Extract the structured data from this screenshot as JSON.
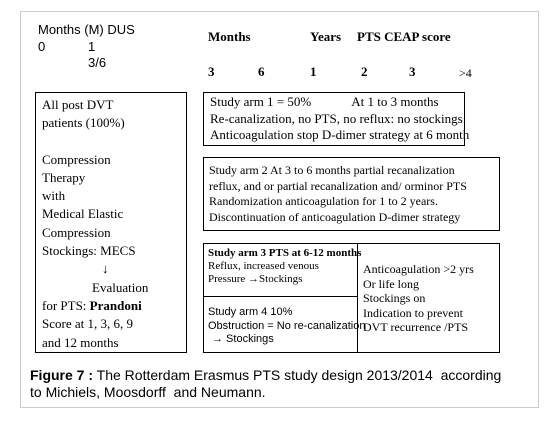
{
  "header": {
    "dus_label": "Months (M) DUS",
    "dus_values": [
      "0",
      "1",
      "3/6"
    ],
    "columns": [
      "Months",
      "Years",
      "PTS CEAP score"
    ],
    "scale": [
      "3",
      "6",
      "1",
      "2",
      "3",
      ">4"
    ]
  },
  "left_box": {
    "lines": [
      "All post DVT",
      "patients (100%)",
      "Compression",
      "Therapy",
      "with",
      "Medical Elastic",
      "Compression",
      "Stockings: MECS",
      "↓",
      "Evaluation",
      {
        "text": "for PTS: ",
        "bold": "Prandoni"
      },
      "Score at 1, 3, 6, 9",
      "and 12 months"
    ]
  },
  "arm1": {
    "lines": [
      {
        "left": "Study arm 1 = 50%",
        "right": "At 1 to 3 months"
      },
      "Re-canalization, no PTS, no reflux: no stockings",
      "Anticoagulation stop D-dimer strategy at 6 month"
    ]
  },
  "arm2": {
    "lines": [
      "Study arm 2 At 3 to 6 months partial recanalization",
      "reflux, and or partial recanalization and/ orminor PTS",
      "Randomization anticoagulation for 1 to 2 years.",
      "Discontinuation of anticoagulation D-dimer strategy"
    ]
  },
  "arm3": {
    "lines": [
      "Study arm 3 PTS at 6-12 months",
      "Reflux, increased venous",
      "Pressure →Stockings"
    ]
  },
  "arm4": {
    "lines": [
      "Study arm 4 10%",
      "Obstruction = No re-canalization",
      "→ Stockings"
    ]
  },
  "anticoagulation": {
    "lines": [
      "Anticoagulation >2 yrs",
      "Or life long",
      "Stockings on",
      "Indication to prevent",
      "DVT recurrence /PTS"
    ]
  },
  "caption": {
    "label": "Figure 7 :",
    "lines": [
      " The Rotterdam Erasmus PTS study design 2013/2014  according",
      "to Michiels, Moosdorff  and Neumann."
    ]
  }
}
